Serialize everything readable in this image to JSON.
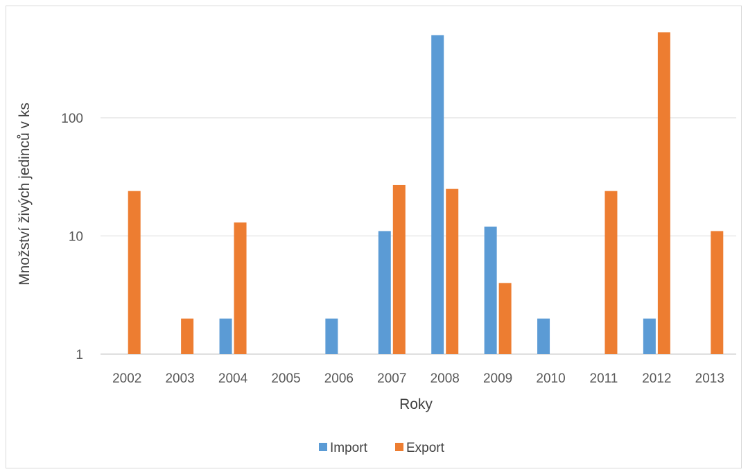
{
  "chart_data": {
    "type": "bar",
    "title": "",
    "xlabel": "Roky",
    "ylabel": "Množství živých jedinců v ks",
    "y_scale": "log",
    "ylim": [
      1,
      700
    ],
    "y_ticks": [
      "1",
      "10",
      "100"
    ],
    "grid": true,
    "legend_position": "bottom",
    "categories": [
      "2002",
      "2003",
      "2004",
      "2005",
      "2006",
      "2007",
      "2008",
      "2009",
      "2010",
      "2011",
      "2012",
      "2013"
    ],
    "series": [
      {
        "name": "Import",
        "color": "#5b9bd5",
        "values": [
          null,
          null,
          2,
          null,
          2,
          11,
          500,
          12,
          2,
          null,
          2,
          null
        ]
      },
      {
        "name": "Export",
        "color": "#ed7d31",
        "values": [
          24,
          2,
          13,
          null,
          null,
          27,
          25,
          4,
          null,
          24,
          530,
          11
        ]
      }
    ]
  }
}
